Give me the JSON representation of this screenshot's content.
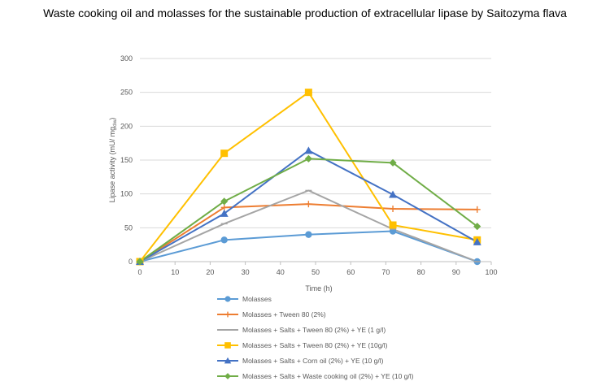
{
  "chart_data": {
    "type": "line",
    "title": "Waste cooking oil and molasses for the sustainable production of extracellular lipase by Saitozyma flava",
    "xlabel": "Time (h)",
    "ylabel_main": "Lipase activity (mU/ mg",
    "ylabel_sub": "dw",
    "ylabel_close": ")",
    "xlim": [
      0,
      100
    ],
    "ylim": [
      0,
      300
    ],
    "xticks": [
      0,
      10,
      20,
      30,
      40,
      50,
      60,
      70,
      80,
      90,
      100
    ],
    "yticks": [
      0,
      50,
      100,
      150,
      200,
      250,
      300
    ],
    "grid": "horizontal",
    "legend_position": "bottom",
    "x": [
      0,
      24,
      48,
      72,
      96
    ],
    "series": [
      {
        "name": "Molasses",
        "color": "#5B9BD5",
        "marker": "circle",
        "values": [
          0,
          32,
          40,
          45,
          0
        ]
      },
      {
        "name": "Molasses + Tween 80 (2%)",
        "color": "#ED7D31",
        "marker": "plus",
        "values": [
          0,
          80,
          85,
          78,
          77
        ]
      },
      {
        "name": "Molasses + Salts + Tween 80 (2%) + YE (1 g/l)",
        "color": "#A5A5A5",
        "marker": "dash",
        "values": [
          0,
          56,
          105,
          48,
          0
        ]
      },
      {
        "name": "Molasses + Salts + Tween 80 (2%) + YE (10g/l)",
        "color": "#FFC000",
        "marker": "square",
        "values": [
          0,
          160,
          250,
          54,
          32
        ]
      },
      {
        "name": "Molasses + Salts + Corn oil (2%) + YE (10 g/l)",
        "color": "#4472C4",
        "marker": "triangle",
        "values": [
          0,
          71,
          164,
          99,
          29
        ]
      },
      {
        "name": "Molasses + Salts + Waste cooking oil (2%) + YE (10 g/l)",
        "color": "#70AD47",
        "marker": "diamond",
        "values": [
          0,
          89,
          152,
          146,
          52
        ]
      }
    ]
  }
}
